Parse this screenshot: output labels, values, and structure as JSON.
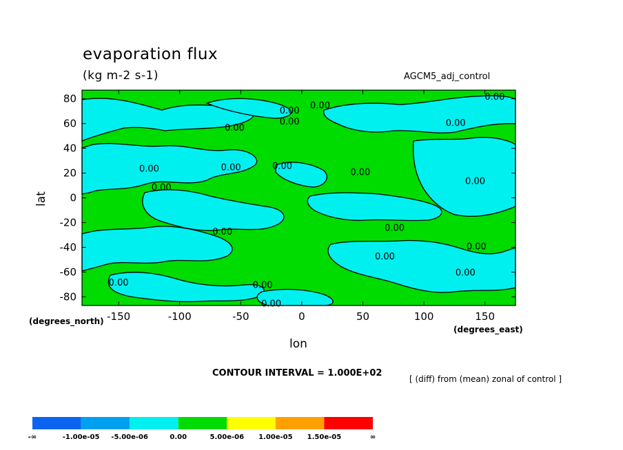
{
  "title": "evaporation flux",
  "units": "(kg m-2 s-1)",
  "experiment": "AGCM5_adj_control",
  "deg_north": "(degrees_north)",
  "deg_east": "(degrees_east)",
  "xaxis_label": "lon",
  "yaxis_label": "lat",
  "contour_interval": "CONTOUR INTERVAL = 1.000E+02",
  "note": "[ (diff) from (mean) zonal of control ]",
  "colors": {
    "dark_blue": "#0b64f0",
    "mid_blue": "#00a0f0",
    "cyan": "#00f0f0",
    "green": "#00dc00",
    "yellow": "#ffff00",
    "orange": "#ffa000",
    "red": "#ff0000"
  },
  "chart_data": {
    "type": "heatmap",
    "xlim": [
      -180,
      175
    ],
    "ylim": [
      -87,
      87
    ],
    "xticks": [
      -150,
      -100,
      -50,
      0,
      50,
      100,
      150
    ],
    "yticks": [
      80,
      60,
      40,
      20,
      0,
      -20,
      -40,
      -60,
      -80
    ],
    "xtick_labels": [
      "-150",
      "-100",
      "-50",
      "0",
      "50",
      "100",
      "150"
    ],
    "ytick_labels": [
      "80",
      "60",
      "40",
      "20",
      "0",
      "-20",
      "-40",
      "-60",
      "-80"
    ],
    "contour_labels": [
      {
        "text": "0.00",
        "lon": -55,
        "lat": 57
      },
      {
        "text": "0.00",
        "lon": -10,
        "lat": 71
      },
      {
        "text": "0.00",
        "lon": 15,
        "lat": 75
      },
      {
        "text": "0.00",
        "lon": -10,
        "lat": 62
      },
      {
        "text": "0.00",
        "lon": 158,
        "lat": 82
      },
      {
        "text": "0.00",
        "lon": 126,
        "lat": 61
      },
      {
        "text": "0.00",
        "lon": -125,
        "lat": 24
      },
      {
        "text": "0.00",
        "lon": -58,
        "lat": 25
      },
      {
        "text": "0.00",
        "lon": -16,
        "lat": 26
      },
      {
        "text": "0.00",
        "lon": 48,
        "lat": 21
      },
      {
        "text": "0.00",
        "lon": 142,
        "lat": 14
      },
      {
        "text": "0.00",
        "lon": -115,
        "lat": 9
      },
      {
        "text": "0.00",
        "lon": -65,
        "lat": -27
      },
      {
        "text": "0.00",
        "lon": 76,
        "lat": -24
      },
      {
        "text": "0.00",
        "lon": 143,
        "lat": -39
      },
      {
        "text": "0.00",
        "lon": 68,
        "lat": -47
      },
      {
        "text": "0.00",
        "lon": 134,
        "lat": -60
      },
      {
        "text": "0.00",
        "lon": -150,
        "lat": -68
      },
      {
        "text": "0.00",
        "lon": -32,
        "lat": -70
      },
      {
        "text": "0.00",
        "lon": -25,
        "lat": -85
      }
    ],
    "colorbar": {
      "boundaries": [
        "-∞",
        "-1.00e-05",
        "-5.00e-06",
        "0.00",
        "5.00e-06",
        "1.00e-05",
        "1.50e-05",
        "∞"
      ],
      "colors": [
        "#0b64f0",
        "#00a0f0",
        "#00f0f0",
        "#00dc00",
        "#ffff00",
        "#ffa000",
        "#ff0000"
      ]
    }
  }
}
